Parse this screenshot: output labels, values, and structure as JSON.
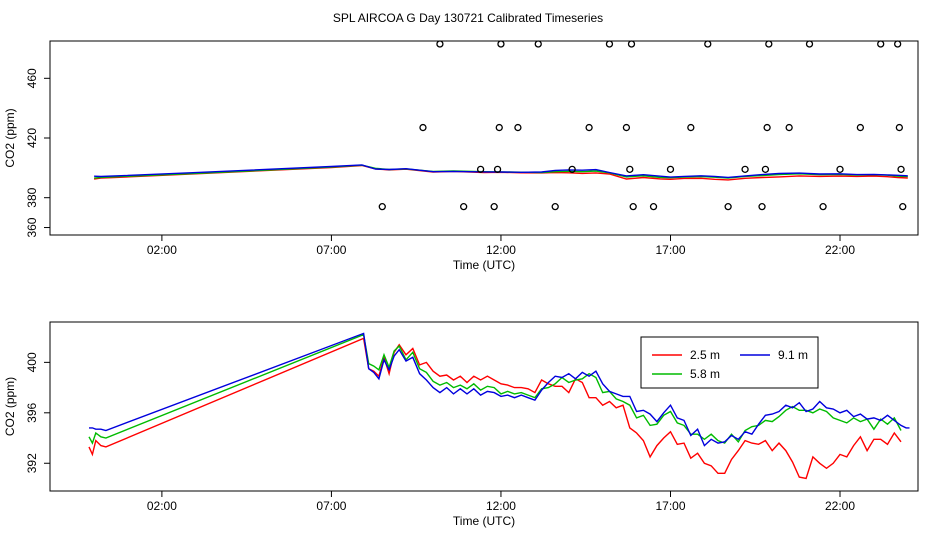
{
  "title": "SPL AIRCOA G  Day 130721  Calibrated Timeseries",
  "chart_data": [
    {
      "type": "line",
      "xlabel": "Time (UTC)",
      "ylabel": "CO2 (ppm)",
      "xlim": [
        -1.3,
        24.3
      ],
      "ylim": [
        355,
        485
      ],
      "xticks": [
        2,
        7,
        12,
        17,
        22
      ],
      "xtick_labels": [
        "02:00",
        "07:00",
        "12:00",
        "17:00",
        "22:00"
      ],
      "yticks": [
        360,
        380,
        420,
        460
      ],
      "ytick_labels": [
        "360",
        "380",
        "420",
        "460"
      ],
      "series": [
        {
          "name": "2.5 m",
          "color": "#ff0000",
          "x": [
            0.0,
            0.2,
            0.5,
            3,
            7.0,
            7.9,
            8.3,
            8.7,
            9.2,
            10.0,
            10.6,
            11.5,
            12.0,
            12.6,
            13.2,
            13.6,
            14.0,
            14.4,
            14.8,
            15.2,
            15.7,
            16.2,
            16.7,
            17.0,
            17.4,
            17.9,
            18.3,
            18.7,
            19.2,
            19.7,
            20.2,
            20.8,
            21.4,
            22.0,
            22.5,
            23.0,
            23.4,
            23.7,
            24.0
          ],
          "y": [
            392.5,
            393.1,
            393.4,
            396.0,
            400.2,
            401.6,
            399.3,
            398.6,
            399.1,
            397.2,
            397.6,
            396.9,
            397.0,
            396.7,
            396.6,
            396.9,
            396.7,
            396.3,
            396.6,
            395.9,
            392.5,
            393.5,
            392.6,
            392.3,
            392.9,
            393.0,
            392.3,
            391.9,
            393.0,
            393.5,
            393.9,
            394.6,
            394.3,
            394.5,
            394.3,
            394.5,
            394.1,
            393.5,
            393.2
          ]
        },
        {
          "name": "5.8 m",
          "color": "#00bb00",
          "x": [
            0.0,
            0.2,
            0.5,
            3,
            7.0,
            7.9,
            8.3,
            8.7,
            9.2,
            10.0,
            10.6,
            11.5,
            12.0,
            12.6,
            13.2,
            13.6,
            14.0,
            14.4,
            14.8,
            15.2,
            15.7,
            16.2,
            16.7,
            17.0,
            17.4,
            17.9,
            18.3,
            18.7,
            19.2,
            19.7,
            20.2,
            20.8,
            21.4,
            22.0,
            22.5,
            23.0,
            23.4,
            23.7,
            24.0
          ],
          "y": [
            393.1,
            393.6,
            393.9,
            396.3,
            400.5,
            401.8,
            399.7,
            398.9,
            399.3,
            397.6,
            397.9,
            397.4,
            397.3,
            397.1,
            396.9,
            397.4,
            397.7,
            397.4,
            397.9,
            396.7,
            393.9,
            394.7,
            393.6,
            393.4,
            393.8,
            394.2,
            393.7,
            393.2,
            394.3,
            394.8,
            395.5,
            396.0,
            395.4,
            395.6,
            395.2,
            395.4,
            395.1,
            394.4,
            394.2
          ]
        },
        {
          "name": "9.1 m",
          "color": "#0000dd",
          "x": [
            0.0,
            0.2,
            0.5,
            3,
            7.0,
            7.9,
            8.3,
            8.7,
            9.2,
            10.0,
            10.6,
            11.5,
            12.0,
            12.6,
            13.2,
            13.6,
            14.0,
            14.4,
            14.8,
            15.2,
            15.7,
            16.2,
            16.7,
            17.0,
            17.4,
            17.9,
            18.3,
            18.7,
            19.2,
            19.7,
            20.2,
            20.8,
            21.4,
            22.0,
            22.5,
            23.0,
            23.4,
            23.7,
            24.0
          ],
          "y": [
            394.4,
            394.2,
            394.5,
            396.8,
            400.9,
            402.0,
            399.2,
            398.9,
            399.4,
            397.4,
            397.6,
            397.3,
            397.2,
            397.0,
            397.2,
            398.3,
            398.6,
            398.4,
            398.8,
            396.9,
            394.6,
            395.4,
            394.4,
            393.8,
            394.3,
            394.7,
            394.3,
            393.6,
            394.6,
            395.5,
            396.2,
            396.5,
            395.9,
            396.0,
            395.5,
            395.6,
            395.3,
            395.0,
            394.7
          ]
        }
      ],
      "outliers": {
        "x": [
          8.5,
          9.7,
          10.2,
          10.9,
          11.4,
          11.8,
          11.9,
          11.95,
          12.0,
          12.5,
          13.1,
          13.6,
          14.1,
          14.6,
          15.2,
          15.7,
          15.8,
          15.85,
          15.9,
          16.5,
          17.0,
          17.6,
          18.1,
          18.7,
          19.2,
          19.7,
          19.8,
          19.85,
          19.9,
          20.5,
          21.1,
          21.5,
          22.0,
          22.6,
          23.2,
          23.7,
          23.75,
          23.8,
          23.85
        ],
        "y": [
          374,
          427,
          483,
          374,
          399,
          374,
          399,
          427,
          483,
          427,
          483,
          374,
          399,
          427,
          483,
          427,
          399,
          483,
          374,
          374,
          399,
          427,
          483,
          374,
          399,
          374,
          399,
          427,
          483,
          427,
          483,
          374,
          399,
          427,
          483,
          483,
          427,
          399,
          374
        ]
      }
    },
    {
      "type": "line",
      "xlabel": "Time (UTC)",
      "ylabel": "CO2 (ppm)",
      "xlim": [
        -1.3,
        24.3
      ],
      "ylim": [
        389.8,
        403.2
      ],
      "xticks": [
        2,
        7,
        12,
        17,
        22
      ],
      "xtick_labels": [
        "02:00",
        "07:00",
        "12:00",
        "17:00",
        "22:00"
      ],
      "yticks": [
        392,
        396,
        400
      ],
      "ytick_labels": [
        "392",
        "396",
        "400"
      ],
      "legend": {
        "position": "top-right",
        "entries": [
          "2.5 m",
          "9.1 m",
          "5.8 m"
        ]
      },
      "series": [
        {
          "name": "2.5 m",
          "color": "#ff0000",
          "x": [
            -0.15,
            -0.05,
            0.05,
            0.2,
            0.35,
            7.95,
            8.1,
            8.25,
            8.4,
            8.55,
            8.7,
            8.85,
            9.0,
            9.2,
            9.4,
            9.6,
            9.8,
            10.0,
            10.2,
            10.4,
            10.6,
            10.8,
            11.0,
            11.2,
            11.4,
            11.6,
            11.8,
            12.0,
            12.2,
            12.4,
            12.6,
            12.8,
            13.0,
            13.2,
            13.4,
            13.6,
            13.8,
            14.0,
            14.2,
            14.4,
            14.6,
            14.8,
            15.0,
            15.2,
            15.4,
            15.6,
            15.8,
            16.0,
            16.2,
            16.4,
            16.6,
            16.8,
            17.0,
            17.2,
            17.4,
            17.6,
            17.8,
            18.0,
            18.2,
            18.4,
            18.6,
            18.8,
            19.0,
            19.2,
            19.4,
            19.6,
            19.8,
            20.0,
            20.2,
            20.4,
            20.6,
            20.8,
            21.0,
            21.2,
            21.4,
            21.6,
            21.8,
            22.0,
            22.2,
            22.4,
            22.6,
            22.8,
            23.0,
            23.2,
            23.4,
            23.6,
            23.8
          ],
          "y": [
            393.3,
            392.7,
            393.8,
            393.4,
            393.3,
            401.9,
            399.5,
            399.3,
            398.9,
            400.4,
            399.1,
            400.8,
            401.4,
            400.6,
            401.1,
            399.8,
            400.0,
            399.3,
            398.9,
            399.0,
            398.6,
            398.9,
            398.4,
            398.9,
            398.6,
            398.9,
            398.6,
            398.3,
            398.2,
            398.0,
            398.0,
            397.9,
            397.6,
            398.6,
            398.3,
            398.1,
            398.1,
            397.6,
            398.7,
            398.4,
            397.2,
            397.2,
            396.6,
            396.9,
            396.4,
            396.6,
            394.8,
            394.4,
            393.8,
            392.5,
            393.4,
            394.0,
            394.5,
            393.5,
            393.6,
            392.4,
            392.8,
            392.0,
            391.8,
            391.2,
            391.2,
            392.3,
            393.0,
            393.8,
            393.6,
            393.5,
            393.8,
            393.0,
            393.6,
            393.0,
            392.1,
            390.9,
            390.8,
            392.5,
            392.0,
            391.6,
            392.0,
            392.7,
            392.5,
            393.4,
            394.1,
            393.0,
            393.9,
            393.9,
            393.5,
            394.4,
            393.7
          ]
        },
        {
          "name": "5.8 m",
          "color": "#00bb00",
          "x": [
            -0.15,
            -0.05,
            0.05,
            0.2,
            0.35,
            7.95,
            8.1,
            8.25,
            8.4,
            8.55,
            8.7,
            8.85,
            9.0,
            9.2,
            9.4,
            9.6,
            9.8,
            10.0,
            10.2,
            10.4,
            10.6,
            10.8,
            11.0,
            11.2,
            11.4,
            11.6,
            11.8,
            12.0,
            12.2,
            12.4,
            12.6,
            12.8,
            13.0,
            13.2,
            13.4,
            13.6,
            13.8,
            14.0,
            14.2,
            14.4,
            14.6,
            14.8,
            15.0,
            15.2,
            15.4,
            15.6,
            15.8,
            16.0,
            16.2,
            16.4,
            16.6,
            16.8,
            17.0,
            17.2,
            17.4,
            17.6,
            17.8,
            18.0,
            18.2,
            18.4,
            18.6,
            18.8,
            19.0,
            19.2,
            19.4,
            19.6,
            19.8,
            20.0,
            20.2,
            20.4,
            20.6,
            20.8,
            21.0,
            21.2,
            21.4,
            21.6,
            21.8,
            22.0,
            22.2,
            22.4,
            22.6,
            22.8,
            23.0,
            23.2,
            23.4,
            23.6,
            23.8
          ],
          "y": [
            394.1,
            393.6,
            394.4,
            394.1,
            394.0,
            402.2,
            399.9,
            399.7,
            399.4,
            400.6,
            399.6,
            400.9,
            401.3,
            400.2,
            400.8,
            399.5,
            399.2,
            398.5,
            398.2,
            398.4,
            398.0,
            398.2,
            397.9,
            398.3,
            397.8,
            398.1,
            398.0,
            397.5,
            397.7,
            397.5,
            397.6,
            397.4,
            397.2,
            397.9,
            398.0,
            398.3,
            398.8,
            398.4,
            398.6,
            398.7,
            399.1,
            398.8,
            397.6,
            397.7,
            397.1,
            396.9,
            396.6,
            395.6,
            395.8,
            395.0,
            395.1,
            395.8,
            396.1,
            395.2,
            395.0,
            394.3,
            394.3,
            393.9,
            394.3,
            393.8,
            393.6,
            394.3,
            393.7,
            394.6,
            394.9,
            395.0,
            395.4,
            395.3,
            395.7,
            396.2,
            396.5,
            396.2,
            396.2,
            396.0,
            396.3,
            396.1,
            395.6,
            395.4,
            395.2,
            395.6,
            395.3,
            395.5,
            394.7,
            395.5,
            395.1,
            395.6,
            394.6
          ]
        },
        {
          "name": "9.1 m",
          "color": "#0000dd",
          "x": [
            -0.15,
            -0.05,
            0.05,
            0.2,
            0.35,
            7.95,
            8.1,
            8.25,
            8.4,
            8.55,
            8.7,
            8.85,
            9.0,
            9.2,
            9.4,
            9.6,
            9.8,
            10.0,
            10.2,
            10.4,
            10.6,
            10.8,
            11.0,
            11.2,
            11.4,
            11.6,
            11.8,
            12.0,
            12.2,
            12.4,
            12.6,
            12.8,
            13.0,
            13.2,
            13.4,
            13.6,
            13.8,
            14.0,
            14.2,
            14.4,
            14.6,
            14.8,
            15.0,
            15.2,
            15.4,
            15.6,
            15.8,
            16.0,
            16.2,
            16.4,
            16.6,
            16.8,
            17.0,
            17.2,
            17.4,
            17.6,
            17.8,
            18.0,
            18.2,
            18.4,
            18.6,
            18.8,
            19.0,
            19.2,
            19.4,
            19.6,
            19.8,
            20.0,
            20.2,
            20.4,
            20.6,
            20.8,
            21.0,
            21.2,
            21.4,
            21.6,
            21.8,
            22.0,
            22.2,
            22.4,
            22.6,
            22.8,
            23.0,
            23.2,
            23.4,
            23.6,
            23.8,
            23.95,
            24.05
          ],
          "y": [
            394.8,
            394.8,
            394.7,
            394.7,
            394.6,
            402.3,
            399.5,
            399.2,
            398.7,
            400.2,
            399.4,
            400.5,
            401.0,
            400.1,
            400.4,
            399.1,
            398.6,
            398.0,
            397.6,
            398.0,
            397.5,
            397.9,
            397.5,
            397.9,
            397.4,
            397.7,
            397.6,
            397.3,
            397.4,
            397.2,
            397.4,
            397.2,
            397.0,
            397.8,
            398.4,
            398.9,
            398.8,
            399.1,
            398.7,
            399.2,
            398.9,
            399.3,
            398.3,
            397.7,
            397.5,
            397.3,
            397.3,
            396.1,
            396.2,
            395.9,
            395.3,
            396.0,
            396.6,
            395.6,
            395.4,
            394.2,
            394.7,
            393.4,
            393.9,
            393.6,
            393.7,
            394.2,
            393.9,
            394.5,
            394.3,
            395.1,
            395.8,
            395.9,
            396.1,
            396.6,
            396.4,
            396.8,
            396.1,
            396.3,
            396.9,
            396.4,
            396.3,
            396.0,
            396.2,
            395.7,
            395.9,
            395.5,
            395.6,
            395.4,
            395.8,
            395.4,
            395.0,
            394.8,
            394.8
          ]
        }
      ]
    }
  ]
}
